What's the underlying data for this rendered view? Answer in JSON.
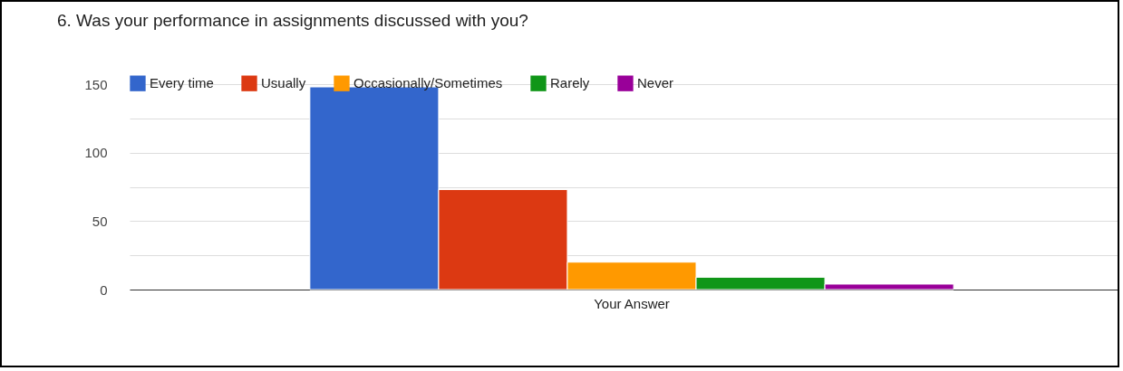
{
  "chart_data": {
    "type": "bar",
    "title": "6. Was your performance in assignments discussed with you?",
    "categories": [
      "Your Answer"
    ],
    "series": [
      {
        "name": "Every time",
        "color": "#3366cc",
        "values": [
          148
        ]
      },
      {
        "name": "Usually",
        "color": "#dc3912",
        "values": [
          73
        ]
      },
      {
        "name": "Occasionally/Sometimes",
        "color": "#ff9900",
        "values": [
          20
        ]
      },
      {
        "name": "Rarely",
        "color": "#109618",
        "values": [
          9
        ]
      },
      {
        "name": "Never",
        "color": "#990099",
        "values": [
          4
        ]
      }
    ],
    "ylim": [
      0,
      150
    ],
    "yticks": [
      0,
      {
        "value": 25,
        "label": null
      },
      50,
      {
        "value": 75,
        "label": null
      },
      100,
      {
        "value": 125,
        "label": null
      },
      150
    ],
    "grid": "y",
    "legend": "top left"
  }
}
